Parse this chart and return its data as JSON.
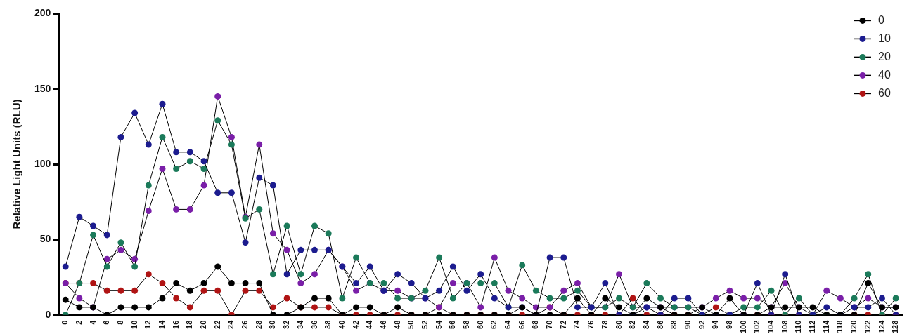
{
  "chart_data": {
    "type": "line",
    "ylabel": "Relative Light Units (RLU)",
    "categories": [
      "0",
      "2",
      "4",
      "6",
      "8",
      "10",
      "12",
      "14",
      "16",
      "18",
      "20",
      "22",
      "24",
      "26",
      "28",
      "30",
      "32",
      "34",
      "36",
      "38",
      "40",
      "42",
      "44",
      "46",
      "48",
      "50",
      "52",
      "54",
      "56",
      "58",
      "60",
      "62",
      "64",
      "66",
      "68",
      "70",
      "72",
      "74",
      "76",
      "78",
      "80",
      "82",
      "84",
      "86",
      "88",
      "90",
      "92",
      "94",
      "98",
      "100",
      "102",
      "104",
      "108",
      "110",
      "112",
      "114",
      "118",
      "120",
      "122",
      "124",
      "128"
    ],
    "ylim": [
      0,
      200
    ],
    "yticks": [
      0,
      50,
      100,
      150,
      200
    ],
    "grid": false,
    "legend": "top right",
    "marker": "circle",
    "line_style": "solid",
    "series": [
      {
        "name": "0",
        "color": "#000000",
        "values": [
          10,
          5,
          5,
          0,
          5,
          5,
          5,
          11,
          21,
          16,
          21,
          32,
          21,
          21,
          21,
          0,
          0,
          5,
          11,
          11,
          0,
          5,
          5,
          0,
          5,
          0,
          0,
          0,
          0,
          0,
          0,
          0,
          0,
          5,
          0,
          0,
          0,
          11,
          0,
          11,
          5,
          0,
          11,
          5,
          0,
          0,
          5,
          0,
          11,
          0,
          0,
          5,
          5,
          5,
          5,
          0,
          0,
          0,
          21,
          5,
          5
        ]
      },
      {
        "name": "10",
        "color": "#1c1c8f",
        "values": [
          32,
          65,
          59,
          53,
          118,
          134,
          113,
          140,
          108,
          108,
          102,
          81,
          81,
          48,
          91,
          86,
          27,
          43,
          43,
          43,
          32,
          21,
          32,
          16,
          27,
          21,
          11,
          16,
          32,
          16,
          27,
          11,
          5,
          5,
          0,
          38,
          38,
          5,
          5,
          21,
          0,
          0,
          5,
          0,
          11,
          11,
          0,
          0,
          0,
          0,
          21,
          0,
          27,
          0,
          0,
          5,
          0,
          5,
          5,
          11,
          0
        ]
      },
      {
        "name": "20",
        "color": "#1b7a5a",
        "values": [
          0,
          21,
          53,
          32,
          48,
          32,
          86,
          118,
          97,
          102,
          97,
          129,
          113,
          64,
          70,
          27,
          59,
          27,
          59,
          54,
          11,
          38,
          21,
          21,
          11,
          11,
          16,
          38,
          11,
          21,
          21,
          21,
          5,
          33,
          16,
          11,
          11,
          16,
          5,
          5,
          11,
          5,
          21,
          11,
          5,
          5,
          0,
          0,
          0,
          5,
          5,
          16,
          0,
          11,
          0,
          0,
          0,
          11,
          27,
          0,
          11
        ]
      },
      {
        "name": "40",
        "color": "#7a1fa8",
        "values": [
          21,
          11,
          5,
          37,
          43,
          37,
          69,
          97,
          70,
          70,
          86,
          145,
          118,
          65,
          113,
          54,
          43,
          21,
          27,
          43,
          32,
          16,
          21,
          16,
          16,
          11,
          11,
          5,
          21,
          21,
          5,
          38,
          16,
          11,
          5,
          5,
          16,
          21,
          5,
          5,
          27,
          5,
          5,
          5,
          5,
          5,
          5,
          11,
          16,
          11,
          11,
          5,
          21,
          5,
          0,
          16,
          11,
          5,
          11,
          5,
          5
        ]
      },
      {
        "name": "60",
        "color": "#b01414",
        "values": [
          21,
          21,
          21,
          16,
          16,
          16,
          27,
          21,
          11,
          5,
          16,
          16,
          0,
          16,
          16,
          5,
          11,
          5,
          5,
          5,
          0,
          0,
          0,
          0,
          0,
          0,
          0,
          5,
          0,
          0,
          0,
          0,
          0,
          0,
          0,
          5,
          0,
          0,
          0,
          0,
          0,
          11,
          0,
          0,
          0,
          0,
          0,
          5,
          0,
          0,
          0,
          0,
          0,
          0,
          0,
          0,
          0,
          0,
          0,
          0,
          0
        ]
      }
    ]
  }
}
